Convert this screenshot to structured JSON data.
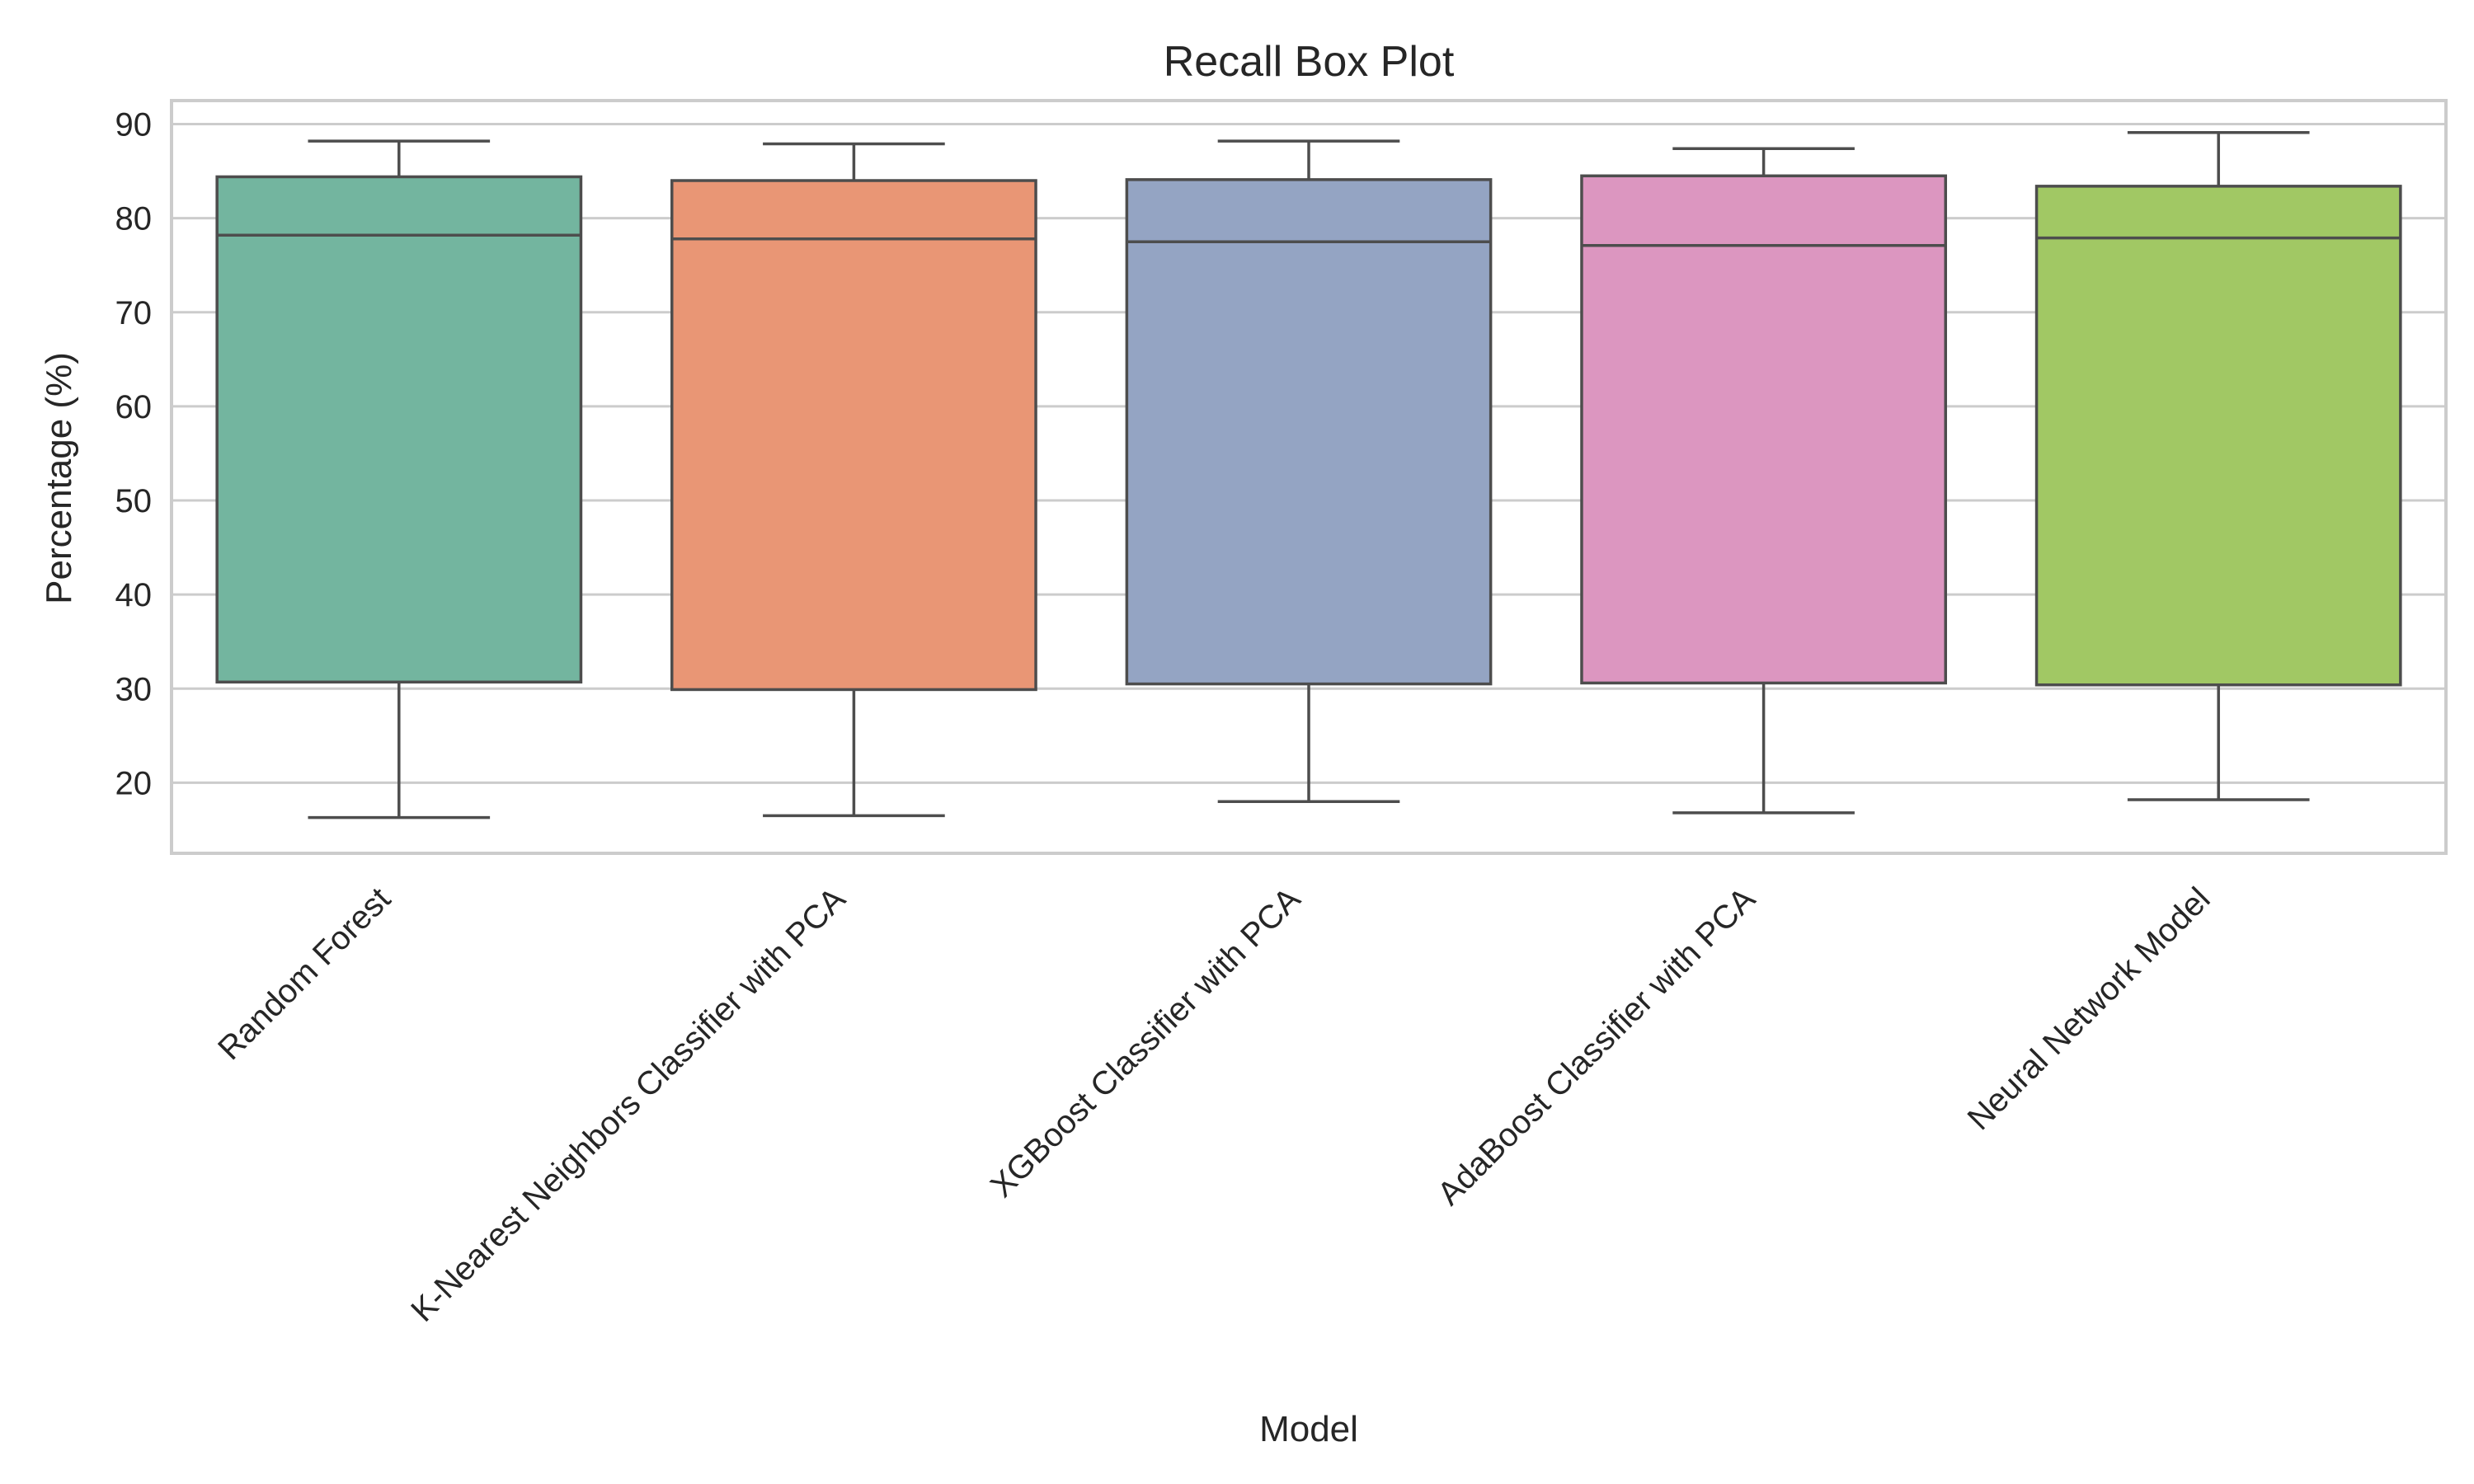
{
  "chart_data": {
    "type": "box",
    "title": "Recall Box Plot",
    "xlabel": "Model",
    "ylabel": "Percentage (%)",
    "ylim": [
      12.5,
      92.5
    ],
    "yticks": [
      20,
      30,
      40,
      50,
      60,
      70,
      80,
      90
    ],
    "grid": true,
    "categories": [
      "Random Forest",
      "K-Nearest Neighbors Classifier with PCA",
      "XGBoost Classifier with PCA",
      "AdaBoost Classifier with PCA",
      "Neural Network Model"
    ],
    "boxes": [
      {
        "min": 16.3,
        "q1": 30.7,
        "median": 78.2,
        "q3": 84.4,
        "max": 88.2,
        "color": "#73b59f"
      },
      {
        "min": 16.5,
        "q1": 29.9,
        "median": 77.8,
        "q3": 84.0,
        "max": 87.9,
        "color": "#e99675"
      },
      {
        "min": 18.0,
        "q1": 30.5,
        "median": 77.5,
        "q3": 84.1,
        "max": 88.2,
        "color": "#94a4c3"
      },
      {
        "min": 16.8,
        "q1": 30.6,
        "median": 77.1,
        "q3": 84.5,
        "max": 87.4,
        "color": "#dc96c0"
      },
      {
        "min": 18.2,
        "q1": 30.4,
        "median": 77.9,
        "q3": 83.4,
        "max": 89.1,
        "color": "#a1c864"
      }
    ]
  }
}
